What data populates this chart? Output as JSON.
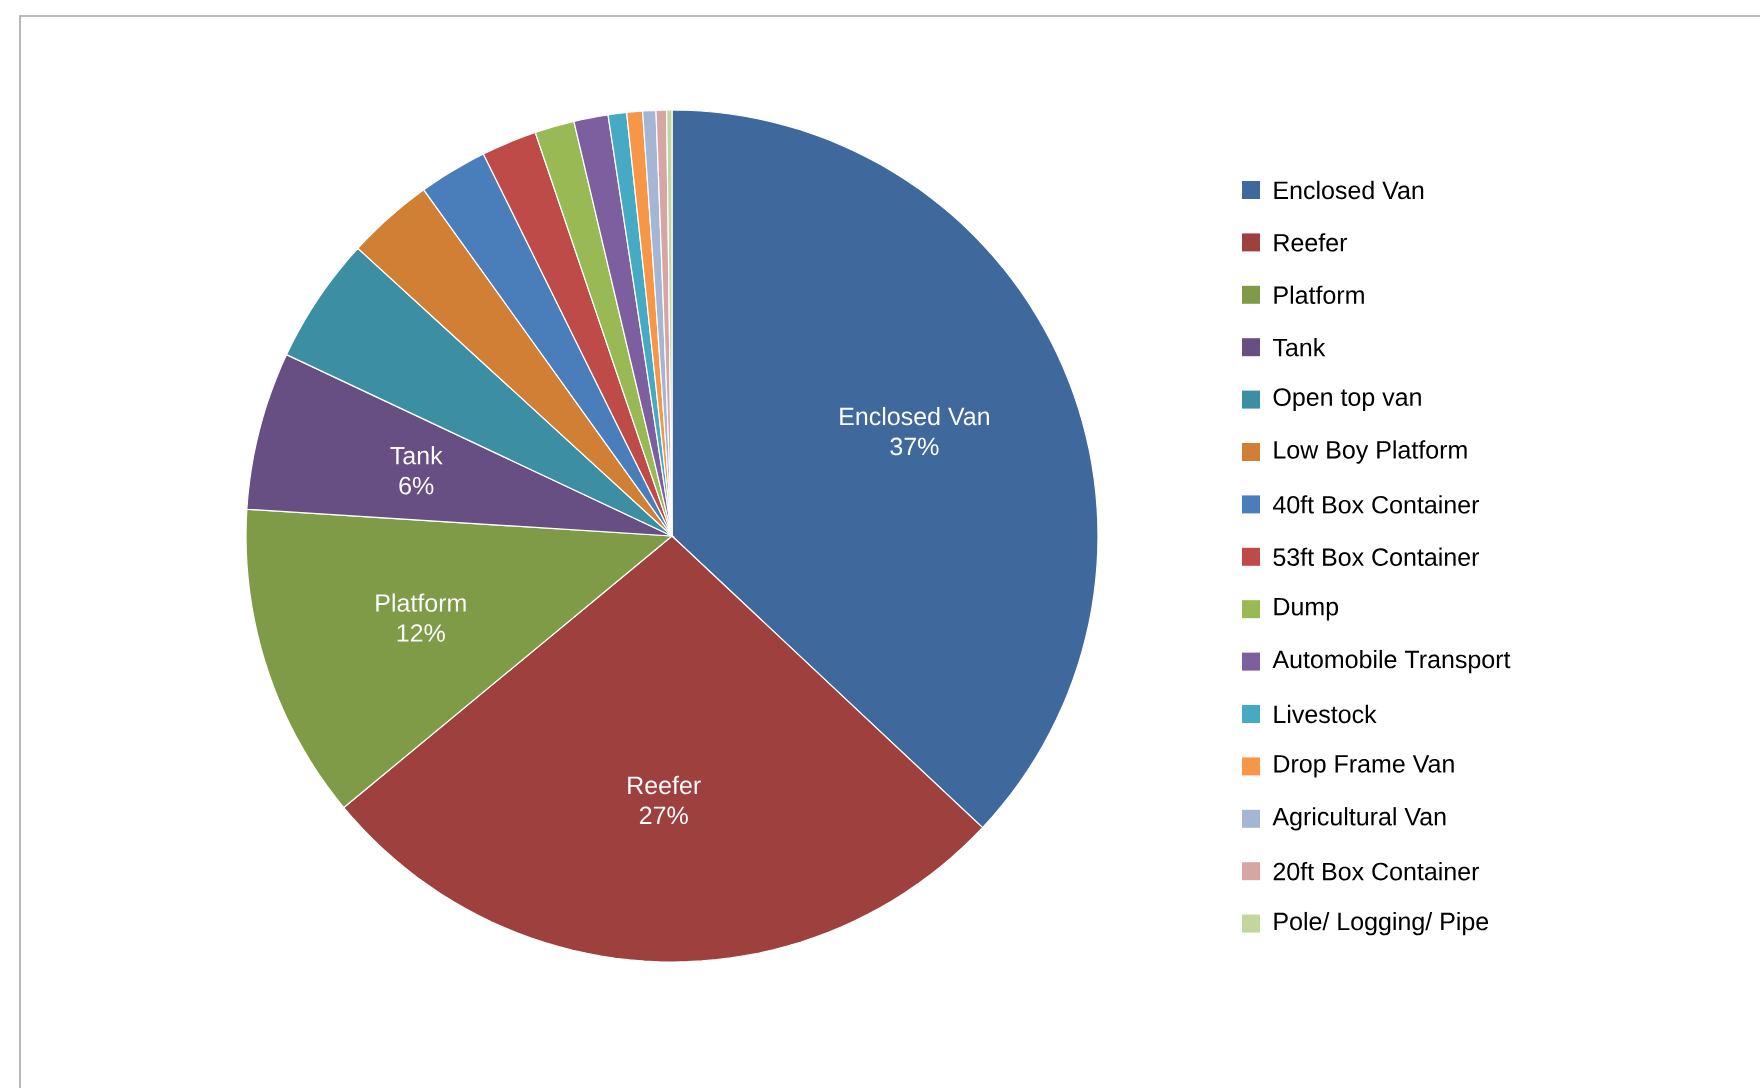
{
  "chart_data": {
    "type": "pie",
    "legend": "right",
    "categories": [
      "Enclosed Van",
      "Reefer",
      "Platform",
      "Tank",
      "Open top van",
      "Low Boy Platform",
      "40ft Box Container",
      "53ft Box Container",
      "Dump",
      "Automobile Transport",
      "Livestock",
      "Drop Frame Van",
      "Agricultural Van",
      "20ft Box Container",
      "Pole/ Logging/ Pipe"
    ],
    "values": [
      37,
      27,
      12,
      6,
      4.8,
      3.3,
      2.6,
      2.1,
      1.5,
      1.3,
      0.7,
      0.6,
      0.5,
      0.4,
      0.2
    ],
    "value_labels": [
      "37%",
      "27%",
      "12%",
      "6%",
      null,
      null,
      null,
      null,
      null,
      null,
      null,
      null,
      null,
      null,
      null
    ],
    "colors": [
      "#3f699d",
      "#9e413e",
      "#7f9b48",
      "#684f83",
      "#3c8ea3",
      "#d17f35",
      "#4a7ebb",
      "#be4b48",
      "#98b954",
      "#7d5fa0",
      "#46aac5",
      "#f79646",
      "#a5b6d5",
      "#d6a5a4",
      "#c3d69b"
    ]
  }
}
